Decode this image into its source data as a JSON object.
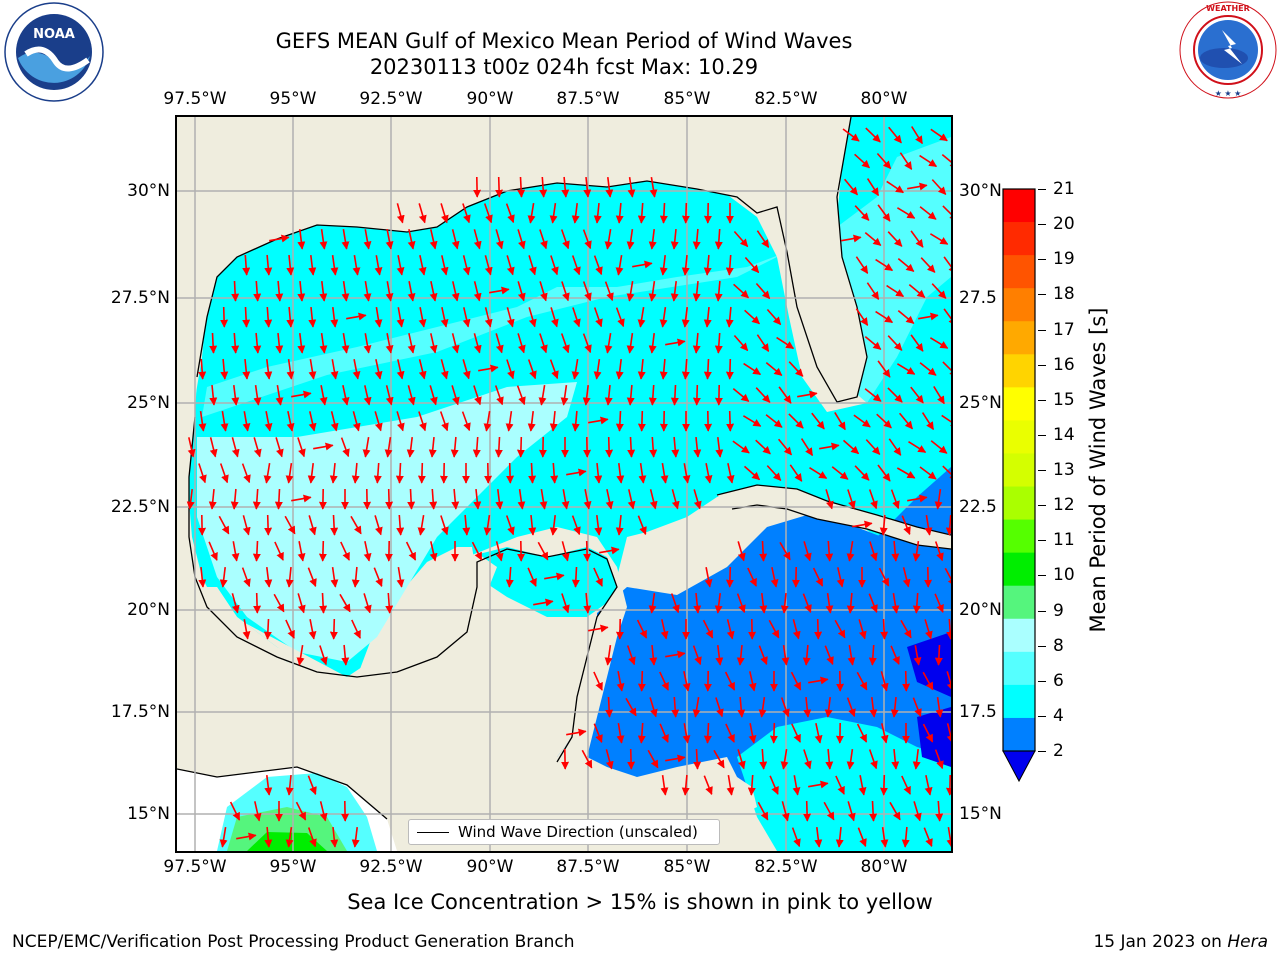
{
  "title": {
    "line1": "GEFS MEAN Gulf of Mexico Mean Period of Wind Waves",
    "line2": "20230113 t00z 024h fcst   Max: 10.29"
  },
  "map": {
    "lon_labels": [
      "97.5°W",
      "95°W",
      "92.5°W",
      "90°W",
      "87.5°W",
      "85°W",
      "82.5°W",
      "80°W"
    ],
    "lat_labels_left": [
      "30°N",
      "27.5°N",
      "25°N",
      "22.5°N",
      "20°N",
      "17.5°N",
      "15°N"
    ],
    "lat_labels_right": [
      "30°N",
      "27.5",
      "25°N",
      "22.5",
      "20°N",
      "17.5",
      "15°N"
    ],
    "legend_label": "Wind Wave Direction (unscaled)",
    "colors": {
      "land": "#efedde",
      "arrow": "#ff0000",
      "coast": "#000000",
      "gridline": "#b0b0b0"
    }
  },
  "colorbar": {
    "label": "Mean Period of Wind Waves [s]",
    "ticks": [
      "21",
      "20",
      "19",
      "18",
      "17",
      "16",
      "15",
      "14",
      "13",
      "12",
      "11",
      "10",
      "9",
      "8",
      "6",
      "4",
      "2"
    ],
    "colors": [
      "#ff0000",
      "#ff2a00",
      "#ff5400",
      "#ff7f00",
      "#ffa900",
      "#ffd400",
      "#ffff00",
      "#eaff00",
      "#d4ff00",
      "#aaff00",
      "#55ff00",
      "#00ee00",
      "#55f57d",
      "#aaffff",
      "#55ffff",
      "#00ffff",
      "#0080ff"
    ],
    "underflow_color": "#0000ee"
  },
  "note": "Sea Ice Concentration > 15% is shown in pink to yellow",
  "footer": {
    "left": "NCEP/EMC/Verification Post Processing Product Generation Branch",
    "right_text": "15 Jan 2023 on ",
    "right_host": "Hera"
  },
  "logos": {
    "noaa_text": "NOAA",
    "noaa_ring": "NATIONAL OCEANIC AND ATMOSPHERIC ADMINISTRATION · U.S. DEPARTMENT OF COMMERCE",
    "nws_ring": "NATIONAL WEATHER SERVICE"
  }
}
